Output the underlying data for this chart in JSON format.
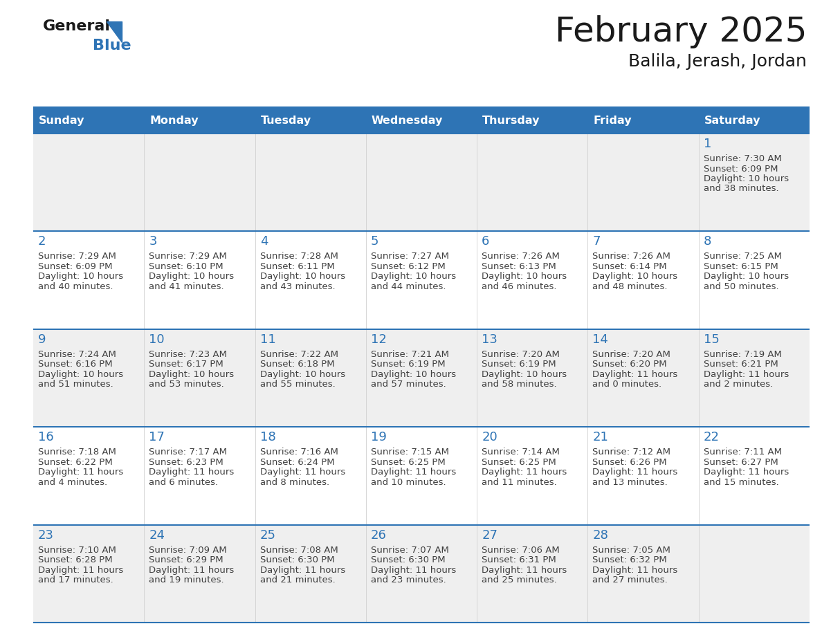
{
  "title": "February 2025",
  "subtitle": "Balila, Jerash, Jordan",
  "header_bg": "#2E74B5",
  "header_text_color": "#FFFFFF",
  "cell_bg_row0": "#EFEFEF",
  "cell_bg_row1": "#FFFFFF",
  "cell_bg_row2": "#EFEFEF",
  "cell_bg_row3": "#FFFFFF",
  "cell_bg_row4": "#EFEFEF",
  "day_number_color": "#2E74B5",
  "text_color": "#404040",
  "line_color": "#2E74B5",
  "days_of_week": [
    "Sunday",
    "Monday",
    "Tuesday",
    "Wednesday",
    "Thursday",
    "Friday",
    "Saturday"
  ],
  "weeks": [
    [
      {
        "day": null,
        "sunrise": null,
        "sunset": null,
        "daylight": null
      },
      {
        "day": null,
        "sunrise": null,
        "sunset": null,
        "daylight": null
      },
      {
        "day": null,
        "sunrise": null,
        "sunset": null,
        "daylight": null
      },
      {
        "day": null,
        "sunrise": null,
        "sunset": null,
        "daylight": null
      },
      {
        "day": null,
        "sunrise": null,
        "sunset": null,
        "daylight": null
      },
      {
        "day": null,
        "sunrise": null,
        "sunset": null,
        "daylight": null
      },
      {
        "day": 1,
        "sunrise": "7:30 AM",
        "sunset": "6:09 PM",
        "daylight_line1": "Daylight: 10 hours",
        "daylight_line2": "and 38 minutes."
      }
    ],
    [
      {
        "day": 2,
        "sunrise": "7:29 AM",
        "sunset": "6:09 PM",
        "daylight_line1": "Daylight: 10 hours",
        "daylight_line2": "and 40 minutes."
      },
      {
        "day": 3,
        "sunrise": "7:29 AM",
        "sunset": "6:10 PM",
        "daylight_line1": "Daylight: 10 hours",
        "daylight_line2": "and 41 minutes."
      },
      {
        "day": 4,
        "sunrise": "7:28 AM",
        "sunset": "6:11 PM",
        "daylight_line1": "Daylight: 10 hours",
        "daylight_line2": "and 43 minutes."
      },
      {
        "day": 5,
        "sunrise": "7:27 AM",
        "sunset": "6:12 PM",
        "daylight_line1": "Daylight: 10 hours",
        "daylight_line2": "and 44 minutes."
      },
      {
        "day": 6,
        "sunrise": "7:26 AM",
        "sunset": "6:13 PM",
        "daylight_line1": "Daylight: 10 hours",
        "daylight_line2": "and 46 minutes."
      },
      {
        "day": 7,
        "sunrise": "7:26 AM",
        "sunset": "6:14 PM",
        "daylight_line1": "Daylight: 10 hours",
        "daylight_line2": "and 48 minutes."
      },
      {
        "day": 8,
        "sunrise": "7:25 AM",
        "sunset": "6:15 PM",
        "daylight_line1": "Daylight: 10 hours",
        "daylight_line2": "and 50 minutes."
      }
    ],
    [
      {
        "day": 9,
        "sunrise": "7:24 AM",
        "sunset": "6:16 PM",
        "daylight_line1": "Daylight: 10 hours",
        "daylight_line2": "and 51 minutes."
      },
      {
        "day": 10,
        "sunrise": "7:23 AM",
        "sunset": "6:17 PM",
        "daylight_line1": "Daylight: 10 hours",
        "daylight_line2": "and 53 minutes."
      },
      {
        "day": 11,
        "sunrise": "7:22 AM",
        "sunset": "6:18 PM",
        "daylight_line1": "Daylight: 10 hours",
        "daylight_line2": "and 55 minutes."
      },
      {
        "day": 12,
        "sunrise": "7:21 AM",
        "sunset": "6:19 PM",
        "daylight_line1": "Daylight: 10 hours",
        "daylight_line2": "and 57 minutes."
      },
      {
        "day": 13,
        "sunrise": "7:20 AM",
        "sunset": "6:19 PM",
        "daylight_line1": "Daylight: 10 hours",
        "daylight_line2": "and 58 minutes."
      },
      {
        "day": 14,
        "sunrise": "7:20 AM",
        "sunset": "6:20 PM",
        "daylight_line1": "Daylight: 11 hours",
        "daylight_line2": "and 0 minutes."
      },
      {
        "day": 15,
        "sunrise": "7:19 AM",
        "sunset": "6:21 PM",
        "daylight_line1": "Daylight: 11 hours",
        "daylight_line2": "and 2 minutes."
      }
    ],
    [
      {
        "day": 16,
        "sunrise": "7:18 AM",
        "sunset": "6:22 PM",
        "daylight_line1": "Daylight: 11 hours",
        "daylight_line2": "and 4 minutes."
      },
      {
        "day": 17,
        "sunrise": "7:17 AM",
        "sunset": "6:23 PM",
        "daylight_line1": "Daylight: 11 hours",
        "daylight_line2": "and 6 minutes."
      },
      {
        "day": 18,
        "sunrise": "7:16 AM",
        "sunset": "6:24 PM",
        "daylight_line1": "Daylight: 11 hours",
        "daylight_line2": "and 8 minutes."
      },
      {
        "day": 19,
        "sunrise": "7:15 AM",
        "sunset": "6:25 PM",
        "daylight_line1": "Daylight: 11 hours",
        "daylight_line2": "and 10 minutes."
      },
      {
        "day": 20,
        "sunrise": "7:14 AM",
        "sunset": "6:25 PM",
        "daylight_line1": "Daylight: 11 hours",
        "daylight_line2": "and 11 minutes."
      },
      {
        "day": 21,
        "sunrise": "7:12 AM",
        "sunset": "6:26 PM",
        "daylight_line1": "Daylight: 11 hours",
        "daylight_line2": "and 13 minutes."
      },
      {
        "day": 22,
        "sunrise": "7:11 AM",
        "sunset": "6:27 PM",
        "daylight_line1": "Daylight: 11 hours",
        "daylight_line2": "and 15 minutes."
      }
    ],
    [
      {
        "day": 23,
        "sunrise": "7:10 AM",
        "sunset": "6:28 PM",
        "daylight_line1": "Daylight: 11 hours",
        "daylight_line2": "and 17 minutes."
      },
      {
        "day": 24,
        "sunrise": "7:09 AM",
        "sunset": "6:29 PM",
        "daylight_line1": "Daylight: 11 hours",
        "daylight_line2": "and 19 minutes."
      },
      {
        "day": 25,
        "sunrise": "7:08 AM",
        "sunset": "6:30 PM",
        "daylight_line1": "Daylight: 11 hours",
        "daylight_line2": "and 21 minutes."
      },
      {
        "day": 26,
        "sunrise": "7:07 AM",
        "sunset": "6:30 PM",
        "daylight_line1": "Daylight: 11 hours",
        "daylight_line2": "and 23 minutes."
      },
      {
        "day": 27,
        "sunrise": "7:06 AM",
        "sunset": "6:31 PM",
        "daylight_line1": "Daylight: 11 hours",
        "daylight_line2": "and 25 minutes."
      },
      {
        "day": 28,
        "sunrise": "7:05 AM",
        "sunset": "6:32 PM",
        "daylight_line1": "Daylight: 11 hours",
        "daylight_line2": "and 27 minutes."
      },
      {
        "day": null,
        "sunrise": null,
        "sunset": null,
        "daylight_line1": null,
        "daylight_line2": null
      }
    ]
  ],
  "row_bg_colors": [
    "#EFEFEF",
    "#FFFFFF",
    "#EFEFEF",
    "#FFFFFF",
    "#EFEFEF"
  ]
}
